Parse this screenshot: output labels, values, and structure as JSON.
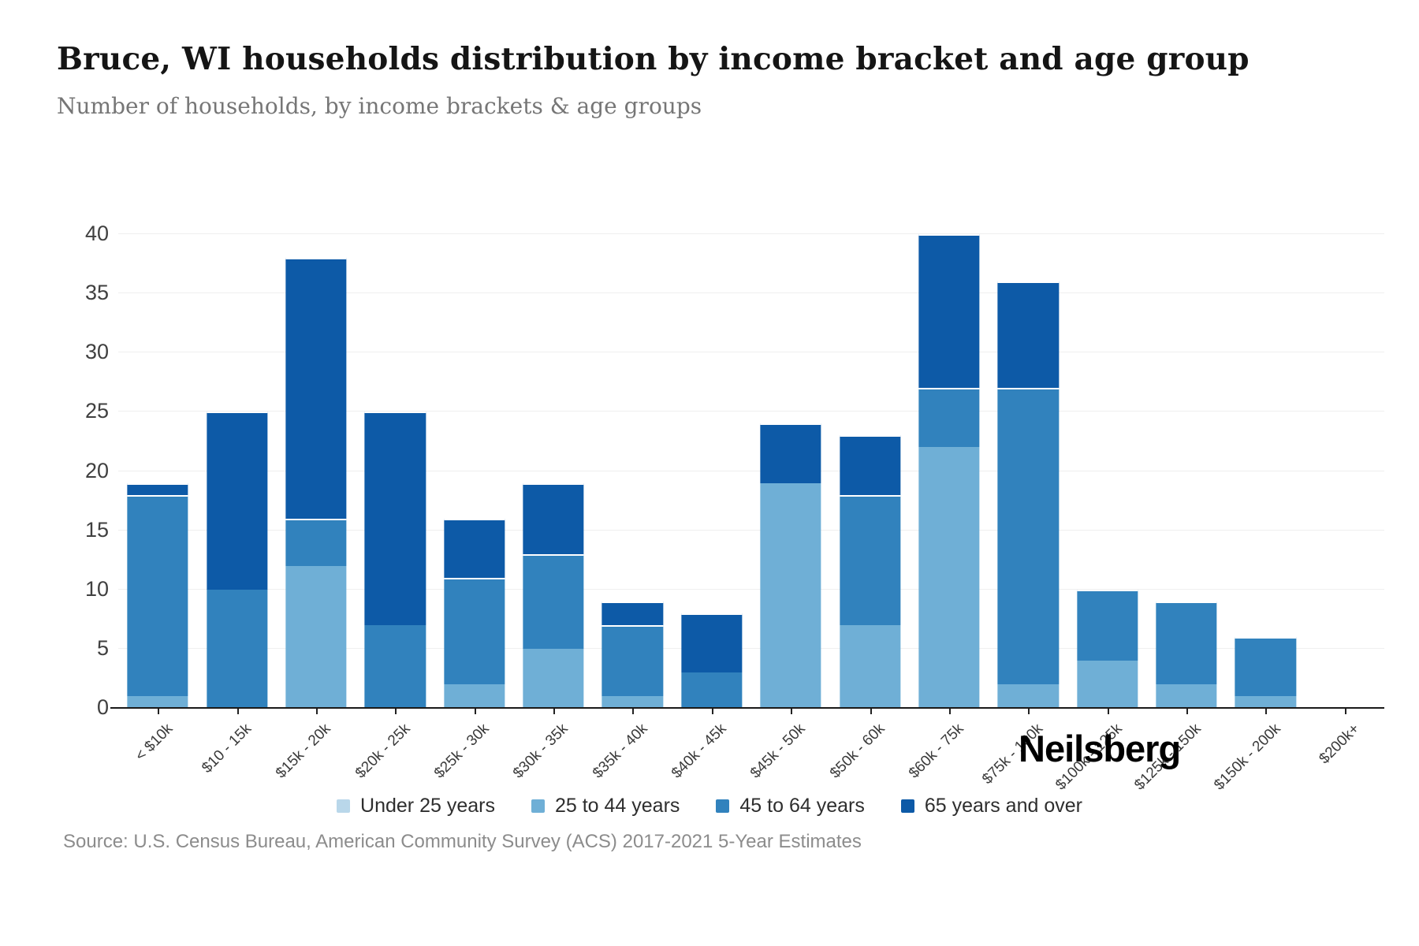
{
  "header": {
    "title": "Bruce, WI households distribution by income bracket and age group",
    "subtitle": "Number of households, by income brackets & age groups"
  },
  "chart_data": {
    "type": "bar",
    "stacked": true,
    "title": "Bruce, WI households distribution by income bracket and age group",
    "subtitle": "Number of households, by income brackets & age groups",
    "xlabel": "",
    "ylabel": "",
    "ylim": [
      0,
      40
    ],
    "yticks": [
      0,
      5,
      10,
      15,
      20,
      25,
      30,
      35,
      40
    ],
    "grid": "horizontal",
    "legend_position": "bottom",
    "categories": [
      "< $10k",
      "$10 - 15k",
      "$15k - 20k",
      "$20k - 25k",
      "$25k - 30k",
      "$30k - 35k",
      "$35k - 40k",
      "$40k - 45k",
      "$45k - 50k",
      "$50k - 60k",
      "$60k - 75k",
      "$75k - 100k",
      "$100k - 125k",
      "$125k - 150k",
      "$150k - 200k",
      "$200k+"
    ],
    "series": [
      {
        "name": "Under 25 years",
        "color": "#b9d7ea",
        "values": [
          0,
          0,
          0,
          0,
          0,
          0,
          0,
          0,
          0,
          0,
          0,
          0,
          0,
          0,
          0,
          0
        ]
      },
      {
        "name": "25 to 44 years",
        "color": "#6fafd6",
        "values": [
          1,
          0,
          12,
          0,
          2,
          5,
          1,
          0,
          19,
          7,
          22,
          2,
          4,
          2,
          1,
          0
        ]
      },
      {
        "name": "45 to 64 years",
        "color": "#3182bd",
        "values": [
          17,
          10,
          4,
          7,
          9,
          8,
          6,
          3,
          0,
          11,
          5,
          25,
          6,
          7,
          5,
          0
        ]
      },
      {
        "name": "65 years and over",
        "color": "#0d5aa7",
        "values": [
          1,
          15,
          22,
          18,
          5,
          6,
          2,
          5,
          5,
          5,
          13,
          9,
          0,
          0,
          0,
          0
        ]
      }
    ],
    "totals": [
      19,
      25,
      38,
      25,
      16,
      19,
      9,
      8,
      24,
      23,
      40,
      36,
      10,
      9,
      6,
      0
    ]
  },
  "footer": {
    "source": "Source: U.S. Census Bureau, American Community Survey (ACS) 2017-2021 5-Year Estimates",
    "brand": "Neilsberg"
  }
}
